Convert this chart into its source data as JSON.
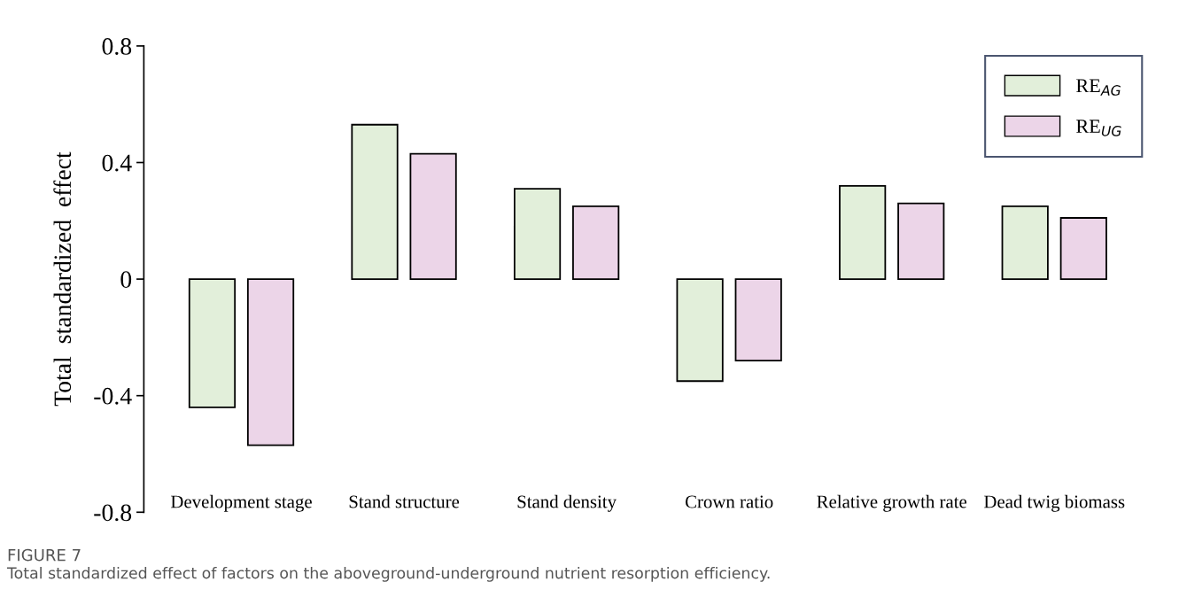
{
  "chart_data": {
    "type": "bar",
    "ylabel": "Total  standardized  effect",
    "categories": [
      "Development stage",
      "Stand structure",
      "Stand density",
      "Crown ratio",
      "Relative growth rate",
      "Dead twig biomass"
    ],
    "series": [
      {
        "name": "RE$_{AG}$",
        "color": "#e2efda",
        "values": [
          -0.44,
          0.53,
          0.31,
          -0.35,
          0.32,
          0.25
        ]
      },
      {
        "name": "RE$_{UG}$",
        "color": "#ecd5e8",
        "values": [
          -0.57,
          0.43,
          0.25,
          -0.28,
          0.26,
          0.21
        ]
      }
    ],
    "ylim": [
      -0.8,
      0.8
    ],
    "yticks": [
      -0.8,
      -0.4,
      0,
      0.4,
      0.8
    ],
    "grid": false,
    "legend": "top right",
    "annotations": [
      "FIGURE 7",
      "Total standardized effect of factors on the aboveground-underground nutrient resorption efficiency."
    ]
  }
}
